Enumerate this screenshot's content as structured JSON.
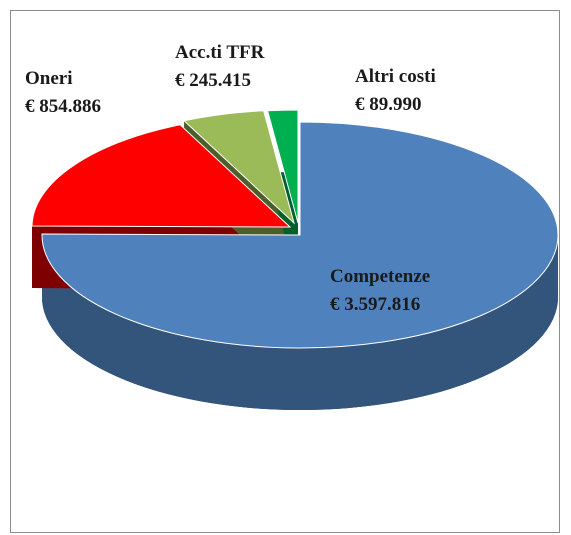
{
  "chart_data": {
    "type": "pie",
    "categories": [
      "Competenze",
      "Oneri",
      "Acc.ti TFR",
      "Altri costi"
    ],
    "values": [
      3597816,
      854886,
      245415,
      89990
    ],
    "value_labels": [
      "€ 3.597.816",
      "€ 854.886",
      "€ 245.415",
      "€ 89.990"
    ],
    "colors": [
      "#4f81bd",
      "#ff0000",
      "#9bbb59",
      "#00b050"
    ]
  }
}
